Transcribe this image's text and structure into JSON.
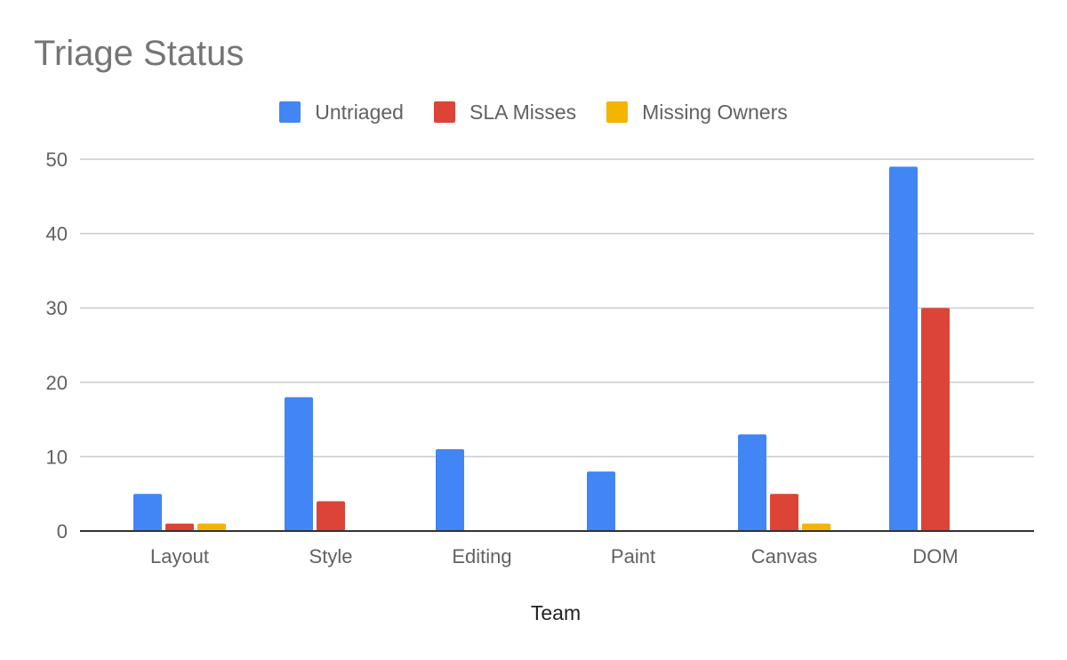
{
  "chart_data": {
    "type": "bar",
    "title": "Triage Status",
    "xlabel": "Team",
    "ylabel": "",
    "categories": [
      "Layout",
      "Style",
      "Editing",
      "Paint",
      "Canvas",
      "DOM"
    ],
    "series": [
      {
        "name": "Untriaged",
        "color": "#4285f4",
        "values": [
          5,
          18,
          11,
          8,
          13,
          49
        ]
      },
      {
        "name": "SLA Misses",
        "color": "#db4437",
        "values": [
          1,
          4,
          0,
          0,
          5,
          30
        ]
      },
      {
        "name": "Missing Owners",
        "color": "#f4b400",
        "values": [
          1,
          0,
          0,
          0,
          1,
          0
        ]
      }
    ],
    "ylim": [
      0,
      50
    ],
    "yticks": [
      "0",
      "10",
      "20",
      "30",
      "40",
      "50"
    ],
    "grid": true,
    "legend_position": "top-center"
  }
}
